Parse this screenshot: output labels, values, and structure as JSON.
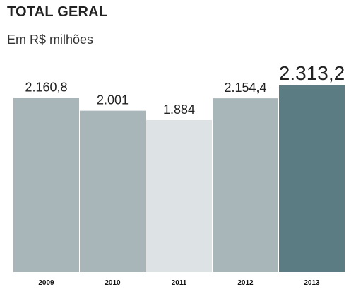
{
  "chart_data": {
    "type": "bar",
    "title": "TOTAL GERAL",
    "subtitle": "Em R$ milhões",
    "categories": [
      "2009",
      "2010",
      "2011",
      "2012",
      "2013"
    ],
    "values": [
      2160.8,
      2001,
      1884,
      2154.4,
      2313.2
    ],
    "value_labels": [
      "2.160,8",
      "2.001",
      "1.884",
      "2.154,4",
      "2.313,2"
    ],
    "colors": [
      "#a8b6ba",
      "#a8b6ba",
      "#dde3e5",
      "#a8b6ba",
      "#5b7c82"
    ],
    "highlight_index": 4,
    "ylim": [
      0,
      2313.2
    ],
    "xlabel": "",
    "ylabel": "",
    "grid": false,
    "legend": "none"
  }
}
